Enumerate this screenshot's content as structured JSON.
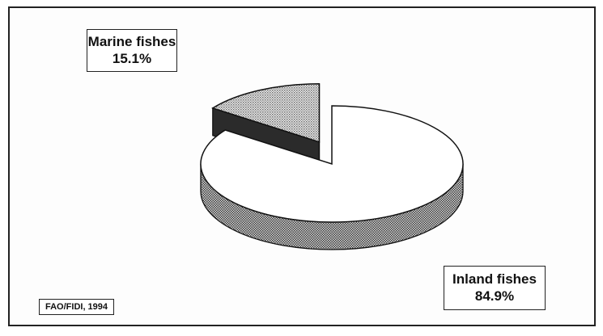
{
  "chart_data": {
    "type": "pie",
    "title": "",
    "slices": [
      {
        "name": "Marine fishes",
        "value": 15.1,
        "label": "15.1%",
        "exploded": true
      },
      {
        "name": "Inland fishes",
        "value": 84.9,
        "label": "84.9%",
        "exploded": false
      }
    ],
    "style": "3d"
  },
  "labels": {
    "marine_name": "Marine fishes",
    "marine_pct": "15.1%",
    "inland_name": "Inland fishes",
    "inland_pct": "84.9%"
  },
  "source": "FAO/FIDI, 1994",
  "colors": {
    "outline": "#111111",
    "dark_side": "#2b2b2b",
    "side_pattern": "#555555",
    "marine_top": "#bdbdbd"
  }
}
